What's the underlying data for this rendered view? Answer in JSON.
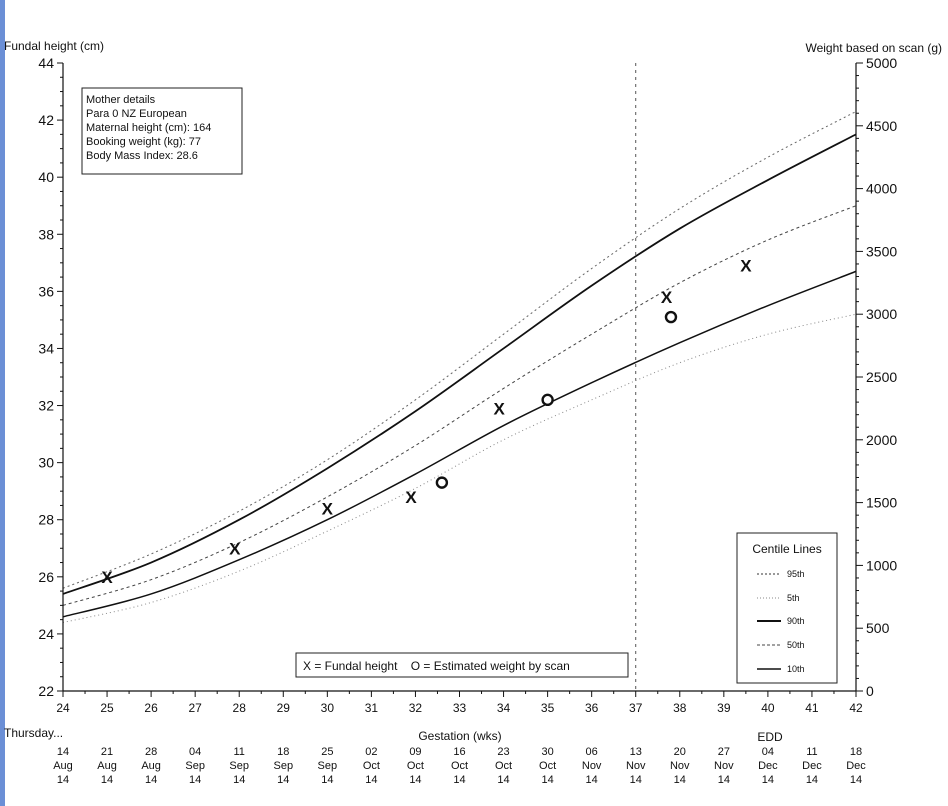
{
  "chart_data": {
    "type": "line",
    "title": "",
    "left_axis": {
      "label": "Fundal height (cm)",
      "range": [
        22,
        44
      ],
      "ticks": [
        22,
        24,
        26,
        28,
        30,
        32,
        34,
        36,
        38,
        40,
        42,
        44
      ]
    },
    "right_axis": {
      "label": "Weight based on scan (g)",
      "range": [
        0,
        5000
      ],
      "ticks": [
        0,
        500,
        1000,
        1500,
        2000,
        2500,
        3000,
        3500,
        4000,
        4500,
        5000
      ]
    },
    "x_axis": {
      "label": "Gestation (wks)",
      "range": [
        24,
        42
      ],
      "ticks": [
        24,
        25,
        26,
        27,
        28,
        29,
        30,
        31,
        32,
        33,
        34,
        35,
        36,
        37,
        38,
        39,
        40,
        41,
        42
      ],
      "edd_week": 37,
      "edd_label": "EDD"
    },
    "date_row_label": "Thursday...",
    "dates": [
      [
        "14",
        "Aug",
        "14"
      ],
      [
        "21",
        "Aug",
        "14"
      ],
      [
        "28",
        "Aug",
        "14"
      ],
      [
        "04",
        "Sep",
        "14"
      ],
      [
        "11",
        "Sep",
        "14"
      ],
      [
        "18",
        "Sep",
        "14"
      ],
      [
        "25",
        "Sep",
        "14"
      ],
      [
        "02",
        "Oct",
        "14"
      ],
      [
        "09",
        "Oct",
        "14"
      ],
      [
        "16",
        "Oct",
        "14"
      ],
      [
        "23",
        "Oct",
        "14"
      ],
      [
        "30",
        "Oct",
        "14"
      ],
      [
        "06",
        "Nov",
        "14"
      ],
      [
        "13",
        "Nov",
        "14"
      ],
      [
        "20",
        "Nov",
        "14"
      ],
      [
        "27",
        "Nov",
        "14"
      ],
      [
        "04",
        "Dec",
        "14"
      ],
      [
        "11",
        "Dec",
        "14"
      ],
      [
        "18",
        "Dec",
        "14"
      ]
    ],
    "mother_details": {
      "title": "Mother details",
      "lines": [
        "Para 0   NZ European",
        "Maternal height (cm): 164",
        "Booking weight (kg): 77",
        "Body Mass Index: 28.6"
      ]
    },
    "series": [
      {
        "name": "90th",
        "style": "solid",
        "x": [
          24,
          26,
          28,
          30,
          32,
          34,
          36,
          38,
          40,
          42
        ],
        "y": [
          25.4,
          26.5,
          28.0,
          29.8,
          31.8,
          34.0,
          36.2,
          38.2,
          39.9,
          41.5
        ]
      },
      {
        "name": "10th",
        "style": "solid",
        "x": [
          24,
          26,
          28,
          30,
          32,
          34,
          36,
          38,
          40,
          42
        ],
        "y": [
          24.6,
          25.4,
          26.6,
          28.0,
          29.6,
          31.3,
          32.8,
          34.2,
          35.5,
          36.7
        ]
      },
      {
        "name": "50th",
        "style": "dotted",
        "x": [
          24,
          26,
          28,
          30,
          32,
          34,
          36,
          38,
          40,
          42
        ],
        "y": [
          25.0,
          25.9,
          27.2,
          28.8,
          30.6,
          32.6,
          34.5,
          36.3,
          37.8,
          39.0
        ]
      },
      {
        "name": "95th",
        "style": "dotted",
        "x": [
          24,
          26,
          28,
          30,
          32,
          34,
          36,
          38,
          40,
          42
        ],
        "y": [
          25.6,
          26.8,
          28.3,
          30.1,
          32.2,
          34.5,
          36.8,
          38.9,
          40.7,
          42.3
        ]
      },
      {
        "name": "5th",
        "style": "dotted",
        "x": [
          24,
          26,
          28,
          30,
          32,
          34,
          36,
          38,
          40,
          42
        ],
        "y": [
          24.4,
          25.1,
          26.2,
          27.6,
          29.1,
          30.8,
          32.2,
          33.5,
          34.5,
          35.2
        ]
      }
    ],
    "fundal_height_points": [
      {
        "x": 25.0,
        "y": 26.0
      },
      {
        "x": 27.9,
        "y": 27.0
      },
      {
        "x": 30.0,
        "y": 28.4
      },
      {
        "x": 31.9,
        "y": 28.8
      },
      {
        "x": 33.9,
        "y": 31.9
      },
      {
        "x": 37.7,
        "y": 35.8
      },
      {
        "x": 39.5,
        "y": 36.9
      }
    ],
    "scan_weight_points": [
      {
        "x": 32.6,
        "y": 29.3
      },
      {
        "x": 35.0,
        "y": 32.2
      },
      {
        "x": 37.8,
        "y": 35.1
      }
    ],
    "key_text": "X = Fundal height    O = Estimated weight by scan",
    "legend": {
      "title": "Centile Lines",
      "placement": "bottom-right",
      "entries": [
        "95th",
        "5th",
        "90th",
        "50th",
        "10th"
      ]
    }
  }
}
